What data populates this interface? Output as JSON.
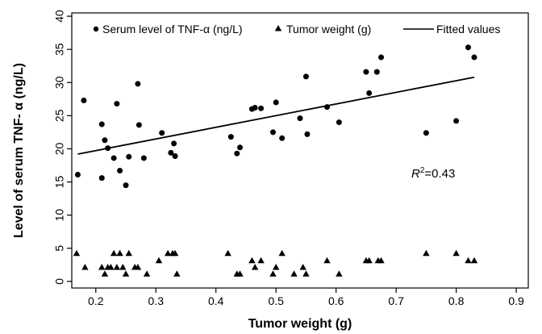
{
  "chart_data": {
    "type": "scatter",
    "xlabel": "Tumor weight (g)",
    "ylabel": "Level of serum TNF- α  (ng/L)",
    "xlim": [
      0.16,
      0.92
    ],
    "ylim": [
      -1,
      40.5
    ],
    "xticks": [
      0.2,
      0.3,
      0.4,
      0.5,
      0.6,
      0.7,
      0.8,
      0.9
    ],
    "xtick_labels": [
      "0.2",
      "0.3",
      "0.4",
      "0.5",
      "0.6",
      "0.7",
      "0.8",
      "0.9"
    ],
    "yticks": [
      0,
      5,
      10,
      15,
      20,
      25,
      30,
      35,
      40
    ],
    "ytick_labels": [
      "0",
      "5",
      "10",
      "15",
      "20",
      "25",
      "30",
      "35",
      "40"
    ],
    "grid": false,
    "legend_position": "top",
    "legend": [
      {
        "label": "Serum level of TNF-α (ng/L)",
        "marker": "circle"
      },
      {
        "label": "Tumor weight (g)",
        "marker": "triangle"
      },
      {
        "label": "Fitted values",
        "marker": "line"
      }
    ],
    "annotation": {
      "prefix": "R",
      "superscript": "2",
      "suffix": "=0.43"
    },
    "series": [
      {
        "name": "Serum level of TNF-α (ng/L)",
        "marker": "circle",
        "points": [
          [
            0.17,
            16.1
          ],
          [
            0.18,
            27.3
          ],
          [
            0.21,
            23.7
          ],
          [
            0.21,
            15.6
          ],
          [
            0.215,
            21.3
          ],
          [
            0.22,
            20.1
          ],
          [
            0.23,
            18.6
          ],
          [
            0.235,
            26.8
          ],
          [
            0.24,
            16.7
          ],
          [
            0.25,
            14.5
          ],
          [
            0.255,
            18.8
          ],
          [
            0.27,
            29.8
          ],
          [
            0.272,
            23.6
          ],
          [
            0.28,
            18.6
          ],
          [
            0.31,
            22.4
          ],
          [
            0.325,
            19.4
          ],
          [
            0.33,
            20.8
          ],
          [
            0.332,
            18.9
          ],
          [
            0.425,
            21.8
          ],
          [
            0.435,
            19.3
          ],
          [
            0.44,
            20.2
          ],
          [
            0.46,
            26.0
          ],
          [
            0.465,
            26.2
          ],
          [
            0.475,
            26.1
          ],
          [
            0.495,
            22.5
          ],
          [
            0.5,
            27.0
          ],
          [
            0.51,
            21.6
          ],
          [
            0.54,
            24.6
          ],
          [
            0.55,
            30.9
          ],
          [
            0.552,
            22.2
          ],
          [
            0.585,
            26.3
          ],
          [
            0.605,
            24.0
          ],
          [
            0.65,
            31.6
          ],
          [
            0.655,
            28.4
          ],
          [
            0.668,
            31.6
          ],
          [
            0.675,
            33.8
          ],
          [
            0.75,
            22.4
          ],
          [
            0.8,
            24.2
          ],
          [
            0.82,
            35.3
          ],
          [
            0.83,
            33.8
          ]
        ]
      },
      {
        "name": "Tumor weight (g)",
        "marker": "triangle",
        "points": [
          [
            0.168,
            4.2
          ],
          [
            0.182,
            2.1
          ],
          [
            0.21,
            2.1
          ],
          [
            0.215,
            1.1
          ],
          [
            0.22,
            2.1
          ],
          [
            0.225,
            2.1
          ],
          [
            0.23,
            4.2
          ],
          [
            0.235,
            2.1
          ],
          [
            0.24,
            4.2
          ],
          [
            0.245,
            2.1
          ],
          [
            0.25,
            1.1
          ],
          [
            0.255,
            4.2
          ],
          [
            0.265,
            2.1
          ],
          [
            0.27,
            2.1
          ],
          [
            0.285,
            1.1
          ],
          [
            0.305,
            3.1
          ],
          [
            0.32,
            4.2
          ],
          [
            0.328,
            4.2
          ],
          [
            0.332,
            4.2
          ],
          [
            0.335,
            1.1
          ],
          [
            0.42,
            4.2
          ],
          [
            0.435,
            1.1
          ],
          [
            0.44,
            1.1
          ],
          [
            0.46,
            3.1
          ],
          [
            0.465,
            2.1
          ],
          [
            0.475,
            3.1
          ],
          [
            0.495,
            1.1
          ],
          [
            0.5,
            2.1
          ],
          [
            0.51,
            4.2
          ],
          [
            0.53,
            1.1
          ],
          [
            0.545,
            2.1
          ],
          [
            0.55,
            1.1
          ],
          [
            0.585,
            3.1
          ],
          [
            0.605,
            1.1
          ],
          [
            0.65,
            3.1
          ],
          [
            0.655,
            3.1
          ],
          [
            0.67,
            3.1
          ],
          [
            0.675,
            3.1
          ],
          [
            0.75,
            4.2
          ],
          [
            0.8,
            4.2
          ],
          [
            0.82,
            3.1
          ],
          [
            0.83,
            3.1
          ]
        ]
      },
      {
        "name": "Fitted values",
        "type": "line",
        "points": [
          [
            0.17,
            19.2
          ],
          [
            0.83,
            30.8
          ]
        ]
      }
    ]
  }
}
